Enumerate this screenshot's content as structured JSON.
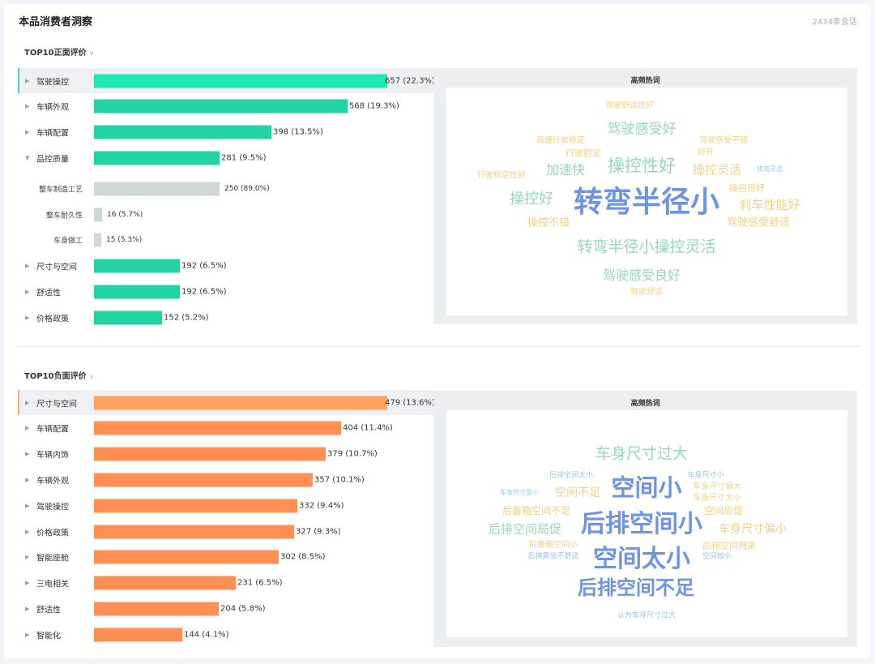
{
  "header": {
    "title": "本品消费者洞察",
    "count": "2434条会话"
  },
  "colors": {
    "positive_bar": "#22d3a3",
    "positive_bar_active": "#1fe8b7",
    "negative_bar": "#ff8f55",
    "negative_bar_active": "#ffa35a",
    "sub_bar": "#cfd8d6",
    "word_blue": "#6d93e8",
    "word_green": "#92d9b8",
    "word_yellow": "#f3d083",
    "word_lightblue": "#91c7e8"
  },
  "positive": {
    "heading": "TOP10正面评价",
    "cloud_title": "高频热词",
    "items": [
      {
        "label": "驾驶操控",
        "value": 657,
        "text": "657 (22.3%)",
        "expanded": false,
        "active": true
      },
      {
        "label": "车辆外观",
        "value": 568,
        "text": "568 (19.3%)",
        "expanded": false
      },
      {
        "label": "车辆配置",
        "value": 398,
        "text": "398 (13.5%)",
        "expanded": false
      },
      {
        "label": "品控质量",
        "value": 281,
        "text": "281 (9.5%)",
        "expanded": true,
        "children": [
          {
            "label": "整车制造工艺",
            "value": 250,
            "text": "250 (89.0%)"
          },
          {
            "label": "整车耐久性",
            "value": 16,
            "text": "16 (5.7%)"
          },
          {
            "label": "车身做工",
            "value": 15,
            "text": "15 (5.3%)"
          }
        ]
      },
      {
        "label": "尺寸与空间",
        "value": 192,
        "text": "192 (6.5%)",
        "expanded": false
      },
      {
        "label": "舒适性",
        "value": 192,
        "text": "192 (6.5%)",
        "expanded": false
      },
      {
        "label": "价格政策",
        "value": 152,
        "text": "152 (5.2%)",
        "expanded": false
      }
    ],
    "words": [
      {
        "text": "驾驶舒适性好",
        "color": "yellow"
      },
      {
        "text": "驾驶感受好",
        "color": "green"
      },
      {
        "text": "高速行驶稳定",
        "color": "yellow"
      },
      {
        "text": "驾驶感受不错",
        "color": "yellow"
      },
      {
        "text": "行驶稳定",
        "color": "yellow"
      },
      {
        "text": "好开",
        "color": "yellow"
      },
      {
        "text": "操控性好",
        "color": "green"
      },
      {
        "text": "加速快",
        "color": "green"
      },
      {
        "text": "操控灵活",
        "color": "yellow"
      },
      {
        "text": "转弯灵活",
        "color": "lightblue"
      },
      {
        "text": "行驶稳定性好",
        "color": "yellow"
      },
      {
        "text": "操控感好",
        "color": "yellow"
      },
      {
        "text": "转弯半径小",
        "color": "blue"
      },
      {
        "text": "操控好",
        "color": "green"
      },
      {
        "text": "刹车性能好",
        "color": "yellow"
      },
      {
        "text": "操控不错",
        "color": "yellow"
      },
      {
        "text": "驾驶感受舒适",
        "color": "yellow"
      },
      {
        "text": "转弯半径小操控灵活",
        "color": "green"
      },
      {
        "text": "驾驶感受良好",
        "color": "green"
      },
      {
        "text": "驾驶舒适",
        "color": "yellow"
      }
    ]
  },
  "negative": {
    "heading": "TOP10负面评价",
    "cloud_title": "高频热词",
    "items": [
      {
        "label": "尺寸与空间",
        "value": 479,
        "text": "479 (13.6%)",
        "expanded": false,
        "active": true
      },
      {
        "label": "车辆配置",
        "value": 404,
        "text": "404 (11.4%)",
        "expanded": false
      },
      {
        "label": "车辆内饰",
        "value": 379,
        "text": "379 (10.7%)",
        "expanded": false
      },
      {
        "label": "车辆外观",
        "value": 357,
        "text": "357 (10.1%)",
        "expanded": false
      },
      {
        "label": "驾驶操控",
        "value": 332,
        "text": "332 (9.4%)",
        "expanded": false
      },
      {
        "label": "价格政策",
        "value": 327,
        "text": "327 (9.3%)",
        "expanded": false
      },
      {
        "label": "智能座舱",
        "value": 302,
        "text": "302 (8.5%)",
        "expanded": false
      },
      {
        "label": "三电相关",
        "value": 231,
        "text": "231 (6.5%)",
        "expanded": false
      },
      {
        "label": "舒适性",
        "value": 204,
        "text": "204 (5.8%)",
        "expanded": false
      },
      {
        "label": "智能化",
        "value": 144,
        "text": "144 (4.1%)",
        "expanded": false
      }
    ],
    "words": [
      {
        "text": "车身尺寸过大",
        "color": "green"
      },
      {
        "text": "后排空间太小",
        "color": "lightblue"
      },
      {
        "text": "车身尺寸小",
        "color": "lightblue"
      },
      {
        "text": "空间小",
        "color": "blue"
      },
      {
        "text": "车身尺寸偏大",
        "color": "yellow"
      },
      {
        "text": "车身尺寸显小",
        "color": "lightblue"
      },
      {
        "text": "空间不足",
        "color": "yellow"
      },
      {
        "text": "车身尺寸太小",
        "color": "yellow"
      },
      {
        "text": "后备箱空间不足",
        "color": "yellow"
      },
      {
        "text": "空间局促",
        "color": "yellow"
      },
      {
        "text": "后排空间小",
        "color": "blue"
      },
      {
        "text": "后排空间局促",
        "color": "green"
      },
      {
        "text": "车身尺寸偏小",
        "color": "yellow"
      },
      {
        "text": "前备箱空间小",
        "color": "yellow"
      },
      {
        "text": "后排空间拥挤",
        "color": "yellow"
      },
      {
        "text": "后排乘坐不舒适",
        "color": "lightblue"
      },
      {
        "text": "空间较小",
        "color": "lightblue"
      },
      {
        "text": "空间太小",
        "color": "blue"
      },
      {
        "text": "后排空间不足",
        "color": "blue"
      },
      {
        "text": "认为车身尺寸过大",
        "color": "lightblue"
      }
    ]
  }
}
